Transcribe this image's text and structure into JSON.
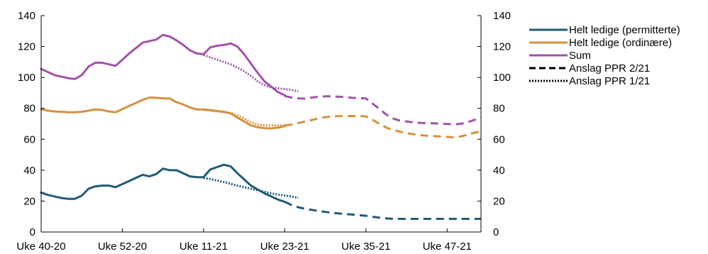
{
  "chart_data": {
    "type": "line",
    "x_ticks": [
      "Uke 40-20",
      "Uke 52-20",
      "Uke 11-21",
      "Uke 23-21",
      "Uke 35-21",
      "Uke 47-21"
    ],
    "x_tick_weeks": [
      0,
      12,
      24,
      36,
      48,
      60
    ],
    "x_range": [
      0,
      65
    ],
    "ylim": [
      0,
      140
    ],
    "y_ticks": [
      0,
      20,
      40,
      60,
      80,
      100,
      120,
      140
    ],
    "y_ticks_right": [
      0,
      20,
      40,
      60,
      80,
      100,
      120,
      140
    ],
    "legend_position": "top-right",
    "colors": {
      "permitterte": "#215a78",
      "ordinaere": "#d4913d",
      "sum": "#a153a9"
    },
    "legend": [
      {
        "label": "Helt ledige (permitterte)",
        "style": "solid",
        "color": "#215a78"
      },
      {
        "label": "Helt ledige (ordinære)",
        "style": "solid",
        "color": "#d4913d"
      },
      {
        "label": "Sum",
        "style": "solid",
        "color": "#a153a9"
      },
      {
        "label": "Anslag PPR 2/21",
        "style": "dashed",
        "color": "#000000"
      },
      {
        "label": "Anslag PPR 1/21",
        "style": "dotted",
        "color": "#000000"
      }
    ],
    "series": [
      {
        "key": "permitterte",
        "style": "solid",
        "color": "#215a78",
        "x": [
          0,
          1,
          2,
          3,
          4,
          5,
          6,
          7,
          8,
          9,
          10,
          11,
          12,
          13,
          14,
          15,
          16,
          17,
          18,
          19,
          20,
          21,
          22,
          23,
          24,
          25,
          26,
          27,
          28,
          29,
          30,
          31,
          32,
          33,
          34,
          35,
          36
        ],
        "y": [
          25.5,
          24,
          23,
          22,
          21.5,
          21.5,
          23.5,
          28,
          29.5,
          30,
          30,
          29,
          31,
          33,
          35,
          37,
          36,
          37.5,
          41,
          40,
          40,
          38,
          36,
          35.5,
          35.5,
          40.5,
          42,
          43.5,
          42.5,
          38,
          34,
          30,
          27.5,
          25,
          23,
          21,
          19.5
        ]
      },
      {
        "key": "ordinaere",
        "style": "solid",
        "color": "#d4913d",
        "x": [
          0,
          1,
          2,
          3,
          4,
          5,
          6,
          7,
          8,
          9,
          10,
          11,
          12,
          13,
          14,
          15,
          16,
          17,
          18,
          19,
          20,
          21,
          22,
          23,
          24,
          25,
          26,
          27,
          28,
          29,
          30,
          31,
          32,
          33,
          34,
          35,
          36
        ],
        "y": [
          79.5,
          78.5,
          78,
          77.8,
          77.5,
          77.5,
          77.8,
          78.5,
          79.3,
          79,
          78,
          77.5,
          79.5,
          81.5,
          83.5,
          85.5,
          87,
          86.8,
          86.5,
          86.4,
          84,
          82.5,
          80.5,
          79.3,
          79.3,
          78.8,
          78.3,
          77.8,
          76.8,
          74,
          71.5,
          69,
          67.8,
          67.2,
          67,
          67.5,
          68.5
        ]
      },
      {
        "key": "sum",
        "style": "solid",
        "color": "#a153a9",
        "x": [
          0,
          1,
          2,
          3,
          4,
          5,
          6,
          7,
          8,
          9,
          10,
          11,
          12,
          13,
          14,
          15,
          16,
          17,
          18,
          19,
          20,
          21,
          22,
          23,
          24,
          25,
          26,
          27,
          28,
          29,
          30,
          31,
          32,
          33,
          34,
          35,
          36
        ],
        "y": [
          105.5,
          103.5,
          101.5,
          100.5,
          99.5,
          99,
          101.5,
          107,
          109.5,
          109.5,
          108.5,
          107.5,
          111.5,
          115.5,
          119,
          122.5,
          123.5,
          124.5,
          127.5,
          126.5,
          124,
          121,
          117.5,
          115.5,
          115,
          119.5,
          120.5,
          121,
          122,
          120,
          115,
          109,
          103,
          97.5,
          94,
          90.5,
          88.5
        ]
      },
      {
        "key": "sum",
        "style": "dashed",
        "color": "#a153a9",
        "x": [
          36,
          37,
          38,
          39,
          40,
          41,
          42,
          43,
          44,
          45,
          46,
          47,
          48,
          49,
          50,
          51,
          52,
          53,
          54,
          55,
          56,
          57,
          58,
          59,
          60,
          61,
          62,
          63,
          64,
          65
        ],
        "y": [
          88,
          87,
          86.5,
          86.3,
          87,
          87.5,
          87.8,
          87.8,
          87.5,
          87.3,
          86.8,
          86.6,
          86.4,
          83,
          79.5,
          76,
          73.5,
          72,
          71.5,
          71,
          70.6,
          70.4,
          70.3,
          70.1,
          69.9,
          69.7,
          70,
          71,
          72.5,
          74
        ]
      },
      {
        "key": "ordinaere",
        "style": "dashed",
        "color": "#d4913d",
        "x": [
          36,
          37,
          38,
          39,
          40,
          41,
          42,
          43,
          44,
          45,
          46,
          47,
          48,
          49,
          50,
          51,
          52,
          53,
          54,
          55,
          56,
          57,
          58,
          59,
          60,
          61,
          62,
          63,
          64,
          65
        ],
        "y": [
          69,
          69.5,
          70.5,
          71.5,
          72.5,
          73.5,
          74.3,
          74.8,
          75,
          75,
          75,
          75,
          74.8,
          72.5,
          70,
          67.5,
          66,
          65,
          64,
          63.3,
          62.7,
          62.3,
          62,
          61.8,
          61.5,
          61.3,
          61.8,
          63,
          64.2,
          65.2
        ]
      },
      {
        "key": "permitterte",
        "style": "dashed",
        "color": "#215a78",
        "x": [
          36,
          37,
          38,
          39,
          40,
          41,
          42,
          43,
          44,
          45,
          46,
          47,
          48,
          49,
          50,
          51,
          52,
          53,
          54,
          55,
          56,
          57,
          58,
          59,
          60,
          61,
          62,
          63,
          64,
          65
        ],
        "y": [
          19.5,
          17.5,
          16,
          15,
          14.3,
          13.6,
          13,
          12.5,
          12,
          11.6,
          11.3,
          10.9,
          10.5,
          9.8,
          9.3,
          8.8,
          8.5,
          8.5,
          8.5,
          8.5,
          8.5,
          8.5,
          8.5,
          8.5,
          8.5,
          8.5,
          8.5,
          8.5,
          8.5,
          8.5
        ]
      },
      {
        "key": "sum",
        "style": "dotted",
        "color": "#a153a9",
        "x": [
          24,
          25,
          26,
          27,
          28,
          29,
          30,
          31,
          32,
          33,
          34,
          35,
          36,
          37,
          38
        ],
        "y": [
          114.5,
          113,
          111.5,
          110,
          108.5,
          106.5,
          104,
          101,
          97.5,
          95,
          93.5,
          93,
          92.5,
          92,
          91
        ]
      },
      {
        "key": "ordinaere",
        "style": "dotted",
        "color": "#d4913d",
        "x": [
          24,
          25,
          26,
          27,
          28,
          29,
          30,
          31,
          32,
          33,
          34,
          35,
          36
        ],
        "y": [
          79,
          78.5,
          78,
          77.5,
          77,
          75.5,
          73.5,
          71,
          69.5,
          69,
          69,
          69,
          69
        ]
      },
      {
        "key": "permitterte",
        "style": "dotted",
        "color": "#215a78",
        "x": [
          24,
          25,
          26,
          27,
          28,
          29,
          30,
          31,
          32,
          33,
          34,
          35,
          36,
          37,
          38
        ],
        "y": [
          35,
          34.2,
          33.3,
          32.3,
          31.2,
          30,
          29,
          28,
          27,
          26,
          25,
          24.2,
          23.6,
          23,
          22
        ]
      }
    ]
  }
}
